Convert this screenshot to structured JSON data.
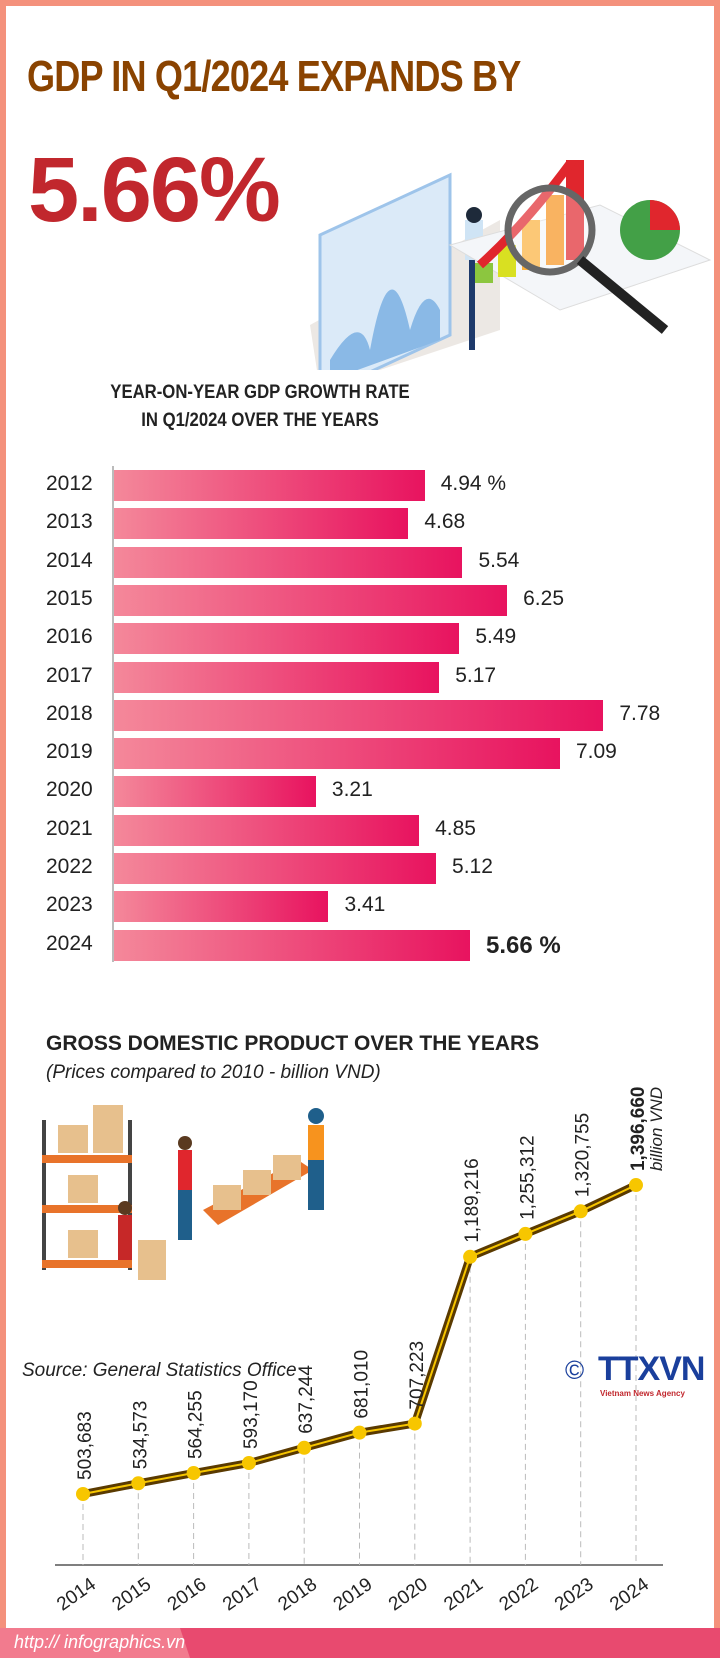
{
  "header": {
    "title": "GDP IN Q1/2024  EXPANDS BY",
    "headline_value": "5.66%"
  },
  "colors": {
    "title": "#8a4300",
    "headline": "#c1272d",
    "bar_start": "#f4889a",
    "bar_end": "#e8135f",
    "line": "#5a3a00",
    "marker": "#f7c600",
    "frame": "#f4917c"
  },
  "chart_data": [
    {
      "type": "bar",
      "orientation": "horizontal",
      "title_line1": "YEAR-ON-YEAR GDP GROWTH RATE",
      "title_line2": "IN Q1/2024  OVER THE YEARS",
      "categories": [
        "2012",
        "2013",
        "2014",
        "2015",
        "2016",
        "2017",
        "2018",
        "2019",
        "2020",
        "2021",
        "2022",
        "2023",
        "2024"
      ],
      "values": [
        4.94,
        4.68,
        5.54,
        6.25,
        5.49,
        5.17,
        7.78,
        7.09,
        3.21,
        4.85,
        5.12,
        3.41,
        5.66
      ],
      "labels": [
        "4.94 %",
        "4.68",
        "5.54",
        "6.25",
        "5.49",
        "5.17",
        "7.78",
        "7.09",
        "3.21",
        "4.85",
        "5.12",
        "3.41",
        "5.66 %"
      ],
      "unit": "%"
    },
    {
      "type": "line",
      "title": "GROSS DOMESTIC PRODUCT OVER THE YEARS",
      "subtitle": "(Prices compared to 2010 - billion VND)",
      "categories": [
        "2014",
        "2015",
        "2016",
        "2017",
        "2018",
        "2019",
        "2020",
        "2021",
        "2022",
        "2023",
        "2024"
      ],
      "values": [
        503683,
        534573,
        564255,
        593170,
        637244,
        681010,
        707223,
        1189216,
        1255312,
        1320755,
        1396660
      ],
      "labels": [
        "503,683",
        "534,573",
        "564,255",
        "593,170",
        "637,244",
        "681,010",
        "707,223",
        "1,189,216",
        "1,255,312",
        "1,320,755",
        "1,396,660"
      ],
      "last_unit": "billion VND"
    }
  ],
  "footer": {
    "source": "Source: General Statistics Office",
    "url": "http:// infographics.vn",
    "logo": "TTXVN",
    "logo_sub": "Vietnam News Agency",
    "copyright": "©"
  }
}
